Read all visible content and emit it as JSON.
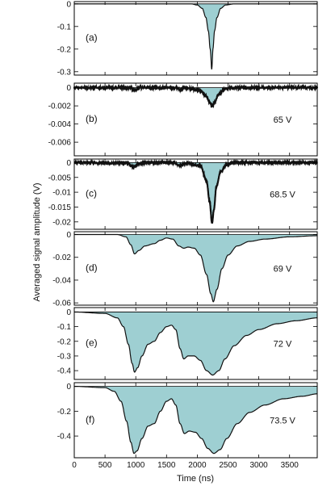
{
  "chart_data": {
    "type": "area",
    "xlabel": "Time (ns)",
    "ylabel": "Averaged signal amplitude (V)",
    "x_ticks": [
      0,
      500,
      1000,
      1500,
      2000,
      2500,
      3000,
      3500
    ],
    "xlim": [
      0,
      3950
    ],
    "fill_color": "#9ecfd2",
    "line_color": "#111111",
    "panels": [
      {
        "label": "(a)",
        "voltage": "",
        "ylim": [
          -0.315,
          0.01
        ],
        "y_ticks": [
          0,
          -0.1,
          -0.2,
          -0.3
        ],
        "y_tick_labels": [
          "0",
          "-0.1",
          "-0.2",
          "-0.3"
        ],
        "noise": 0,
        "series": [
          [
            0,
            0
          ],
          [
            1900,
            0
          ],
          [
            2000,
            -0.005
          ],
          [
            2080,
            -0.02
          ],
          [
            2140,
            -0.06
          ],
          [
            2180,
            -0.12
          ],
          [
            2210,
            -0.2
          ],
          [
            2235,
            -0.29
          ],
          [
            2255,
            -0.2
          ],
          [
            2280,
            -0.12
          ],
          [
            2320,
            -0.06
          ],
          [
            2380,
            -0.02
          ],
          [
            2460,
            -0.005
          ],
          [
            2600,
            0
          ],
          [
            3950,
            0
          ]
        ]
      },
      {
        "label": "(b)",
        "voltage": "65 V",
        "ylim": [
          -0.0075,
          0.0005
        ],
        "y_ticks": [
          0,
          -0.002,
          -0.004,
          -0.006
        ],
        "y_tick_labels": [
          "0",
          "-0.002",
          "-0.004",
          "-0.006"
        ],
        "noise": 0.0001,
        "series": [
          [
            0,
            0
          ],
          [
            900,
            0
          ],
          [
            980,
            -0.0003
          ],
          [
            1060,
            0
          ],
          [
            1650,
            0
          ],
          [
            1720,
            -0.0002
          ],
          [
            1800,
            0
          ],
          [
            2050,
            -0.0003
          ],
          [
            2150,
            -0.001
          ],
          [
            2210,
            -0.0017
          ],
          [
            2240,
            -0.0021
          ],
          [
            2280,
            -0.0016
          ],
          [
            2350,
            -0.0007
          ],
          [
            2450,
            -0.0001
          ],
          [
            2550,
            0
          ],
          [
            3950,
            0
          ]
        ]
      },
      {
        "label": "(c)",
        "voltage": "68.5 V",
        "ylim": [
          -0.0225,
          0.0012
        ],
        "y_ticks": [
          0,
          -0.005,
          -0.01,
          -0.015,
          -0.02
        ],
        "y_tick_labels": [
          "0",
          "-0.005",
          "-0.01",
          "-0.015",
          "-0.02"
        ],
        "noise": 0.0002,
        "series": [
          [
            0,
            0
          ],
          [
            850,
            -0.0002
          ],
          [
            960,
            -0.0013
          ],
          [
            1060,
            -0.0003
          ],
          [
            1200,
            0
          ],
          [
            1600,
            0
          ],
          [
            1720,
            -0.0009
          ],
          [
            1820,
            -0.0002
          ],
          [
            2050,
            -0.001
          ],
          [
            2150,
            -0.006
          ],
          [
            2200,
            -0.013
          ],
          [
            2240,
            -0.0205
          ],
          [
            2270,
            -0.016
          ],
          [
            2310,
            -0.008
          ],
          [
            2380,
            -0.003
          ],
          [
            2480,
            -0.0006
          ],
          [
            2600,
            0
          ],
          [
            3950,
            0
          ]
        ]
      },
      {
        "label": "(d)",
        "voltage": "69 V",
        "ylim": [
          -0.062,
          0.0025
        ],
        "y_ticks": [
          0,
          -0.02,
          -0.04,
          -0.06
        ],
        "y_tick_labels": [
          "0",
          "-0.02",
          "-0.04",
          "-0.06"
        ],
        "noise": 0,
        "series": [
          [
            0,
            0
          ],
          [
            700,
            0
          ],
          [
            840,
            -0.002
          ],
          [
            920,
            -0.009
          ],
          [
            980,
            -0.017
          ],
          [
            1050,
            -0.014
          ],
          [
            1150,
            -0.01
          ],
          [
            1300,
            -0.008
          ],
          [
            1400,
            -0.005
          ],
          [
            1500,
            -0.003
          ],
          [
            1600,
            -0.004
          ],
          [
            1700,
            -0.01
          ],
          [
            1780,
            -0.012
          ],
          [
            1850,
            -0.011
          ],
          [
            1950,
            -0.012
          ],
          [
            2050,
            -0.018
          ],
          [
            2150,
            -0.035
          ],
          [
            2220,
            -0.052
          ],
          [
            2260,
            -0.059
          ],
          [
            2320,
            -0.048
          ],
          [
            2400,
            -0.03
          ],
          [
            2500,
            -0.018
          ],
          [
            2650,
            -0.01
          ],
          [
            2850,
            -0.006
          ],
          [
            3100,
            -0.004
          ],
          [
            3500,
            -0.002
          ],
          [
            3950,
            -0.001
          ]
        ]
      },
      {
        "label": "(e)",
        "voltage": "72 V",
        "ylim": [
          -0.46,
          0.03
        ],
        "y_ticks": [
          0,
          -0.1,
          -0.2,
          -0.3,
          -0.4
        ],
        "y_tick_labels": [
          "0",
          "-0.1",
          "-0.2",
          "-0.3",
          "-0.4"
        ],
        "noise": 0,
        "series": [
          [
            0,
            0
          ],
          [
            500,
            -0.01
          ],
          [
            700,
            -0.04
          ],
          [
            800,
            -0.1
          ],
          [
            880,
            -0.22
          ],
          [
            940,
            -0.35
          ],
          [
            980,
            -0.41
          ],
          [
            1030,
            -0.38
          ],
          [
            1100,
            -0.3
          ],
          [
            1200,
            -0.22
          ],
          [
            1300,
            -0.2
          ],
          [
            1400,
            -0.14
          ],
          [
            1500,
            -0.1
          ],
          [
            1580,
            -0.09
          ],
          [
            1650,
            -0.12
          ],
          [
            1720,
            -0.25
          ],
          [
            1780,
            -0.32
          ],
          [
            1850,
            -0.3
          ],
          [
            1950,
            -0.3
          ],
          [
            2050,
            -0.33
          ],
          [
            2150,
            -0.4
          ],
          [
            2250,
            -0.43
          ],
          [
            2350,
            -0.4
          ],
          [
            2450,
            -0.32
          ],
          [
            2600,
            -0.23
          ],
          [
            2800,
            -0.16
          ],
          [
            3000,
            -0.12
          ],
          [
            3300,
            -0.08
          ],
          [
            3600,
            -0.06
          ],
          [
            3950,
            -0.04
          ]
        ]
      },
      {
        "label": "(f)",
        "voltage": "73.5 V",
        "ylim": [
          -0.575,
          0.03
        ],
        "y_ticks": [
          0,
          -0.2,
          -0.4
        ],
        "y_tick_labels": [
          "0",
          "-0.2",
          "-0.4"
        ],
        "noise": 0,
        "series": [
          [
            0,
            0
          ],
          [
            500,
            -0.01
          ],
          [
            650,
            -0.04
          ],
          [
            760,
            -0.12
          ],
          [
            850,
            -0.28
          ],
          [
            920,
            -0.45
          ],
          [
            970,
            -0.54
          ],
          [
            1020,
            -0.52
          ],
          [
            1100,
            -0.42
          ],
          [
            1200,
            -0.32
          ],
          [
            1300,
            -0.3
          ],
          [
            1400,
            -0.2
          ],
          [
            1500,
            -0.12
          ],
          [
            1580,
            -0.1
          ],
          [
            1650,
            -0.15
          ],
          [
            1720,
            -0.3
          ],
          [
            1790,
            -0.38
          ],
          [
            1870,
            -0.36
          ],
          [
            1970,
            -0.37
          ],
          [
            2070,
            -0.42
          ],
          [
            2170,
            -0.5
          ],
          [
            2270,
            -0.54
          ],
          [
            2370,
            -0.51
          ],
          [
            2480,
            -0.42
          ],
          [
            2650,
            -0.3
          ],
          [
            2850,
            -0.21
          ],
          [
            3100,
            -0.15
          ],
          [
            3400,
            -0.1
          ],
          [
            3700,
            -0.08
          ],
          [
            3950,
            -0.06
          ]
        ]
      }
    ]
  }
}
